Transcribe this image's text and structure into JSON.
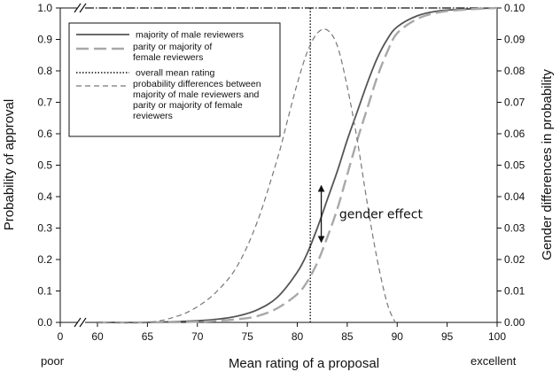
{
  "chart_data": {
    "type": "line",
    "xlabel": "Mean rating of a proposal",
    "ylabel": "Probability of approval",
    "y2label": "Gender differences in probability",
    "x_left_label": "poor",
    "x_right_label": "excellent",
    "xlim": [
      60,
      100
    ],
    "ylim": [
      0,
      1.0
    ],
    "y2lim": [
      0,
      0.1
    ],
    "x_ticks": [
      {
        "value": 60,
        "label": "60"
      },
      {
        "value": 65,
        "label": "65"
      },
      {
        "value": 70,
        "label": "70"
      },
      {
        "value": 75,
        "label": "75"
      },
      {
        "value": 80,
        "label": "80"
      },
      {
        "value": 85,
        "label": "85"
      },
      {
        "value": 90,
        "label": "90"
      },
      {
        "value": 95,
        "label": "95"
      },
      {
        "value": 100,
        "label": "100"
      }
    ],
    "x_zero_label": "0",
    "y_ticks": [
      0.0,
      0.1,
      0.2,
      0.3,
      0.4,
      0.5,
      0.6,
      0.7,
      0.8,
      0.9,
      1.0
    ],
    "y_tick_labels": [
      "0.0",
      "0.1",
      "0.2",
      "0.3",
      "0.4",
      "0.5",
      "0.6",
      "0.7",
      "0.8",
      "0.9",
      "1.0"
    ],
    "y2_ticks": [
      0.0,
      0.01,
      0.02,
      0.03,
      0.04,
      0.05,
      0.06,
      0.07,
      0.08,
      0.09,
      0.1
    ],
    "y2_tick_labels": [
      "0.00",
      "0.01",
      "0.02",
      "0.03",
      "0.04",
      "0.05",
      "0.06",
      "0.07",
      "0.08",
      "0.09",
      "0.10"
    ],
    "axis_break": true,
    "grid": false,
    "legend_position": "top-left",
    "series": [
      {
        "name": "majority of male reviewers",
        "axis": "left",
        "style": "solid",
        "color": "#555555",
        "x": [
          60,
          65,
          70,
          72,
          74,
          76,
          78,
          80,
          81,
          82,
          83,
          84,
          85,
          86,
          87,
          88,
          89,
          90,
          92,
          94,
          96,
          98,
          100
        ],
        "y": [
          0.0,
          0.0,
          0.005,
          0.01,
          0.02,
          0.04,
          0.08,
          0.16,
          0.22,
          0.3,
          0.39,
          0.48,
          0.58,
          0.67,
          0.76,
          0.84,
          0.9,
          0.94,
          0.975,
          0.99,
          0.995,
          0.998,
          1.0
        ]
      },
      {
        "name": "parity or majority of female reviewers",
        "axis": "left",
        "style": "long-dash",
        "color": "#a8a8a8",
        "x": [
          60,
          65,
          70,
          72,
          74,
          76,
          78,
          80,
          81,
          82,
          83,
          84,
          85,
          86,
          87,
          88,
          89,
          90,
          92,
          94,
          96,
          98,
          100
        ],
        "y": [
          0.0,
          0.0,
          0.002,
          0.005,
          0.01,
          0.02,
          0.045,
          0.09,
          0.13,
          0.19,
          0.27,
          0.36,
          0.47,
          0.58,
          0.68,
          0.78,
          0.86,
          0.92,
          0.965,
          0.985,
          0.993,
          0.997,
          1.0
        ]
      },
      {
        "name": "overall mean rating",
        "axis": "left",
        "style": "dotted",
        "color": "#111111",
        "x": [
          81.3,
          81.3
        ],
        "y": [
          0.0,
          1.0
        ]
      },
      {
        "name": "probability differences between majority of male reviewers and parity or majority of female reviewers",
        "axis": "right",
        "style": "short-dash",
        "color": "#777777",
        "x": [
          60,
          65,
          68,
          70,
          72,
          74,
          76,
          78,
          79,
          80,
          81,
          82,
          83,
          84,
          85,
          86,
          87,
          88,
          89,
          89.8
        ],
        "y": [
          0.0,
          0.0,
          0.002,
          0.005,
          0.01,
          0.018,
          0.032,
          0.052,
          0.064,
          0.076,
          0.086,
          0.092,
          0.093,
          0.088,
          0.075,
          0.058,
          0.038,
          0.02,
          0.006,
          0.0
        ]
      }
    ],
    "annotations": [
      {
        "text": "gender effect",
        "x": 84.2,
        "y": 0.345
      },
      {
        "type": "double-arrow",
        "x": 82.4,
        "y_from": 0.255,
        "y_to": 0.435
      }
    ]
  }
}
